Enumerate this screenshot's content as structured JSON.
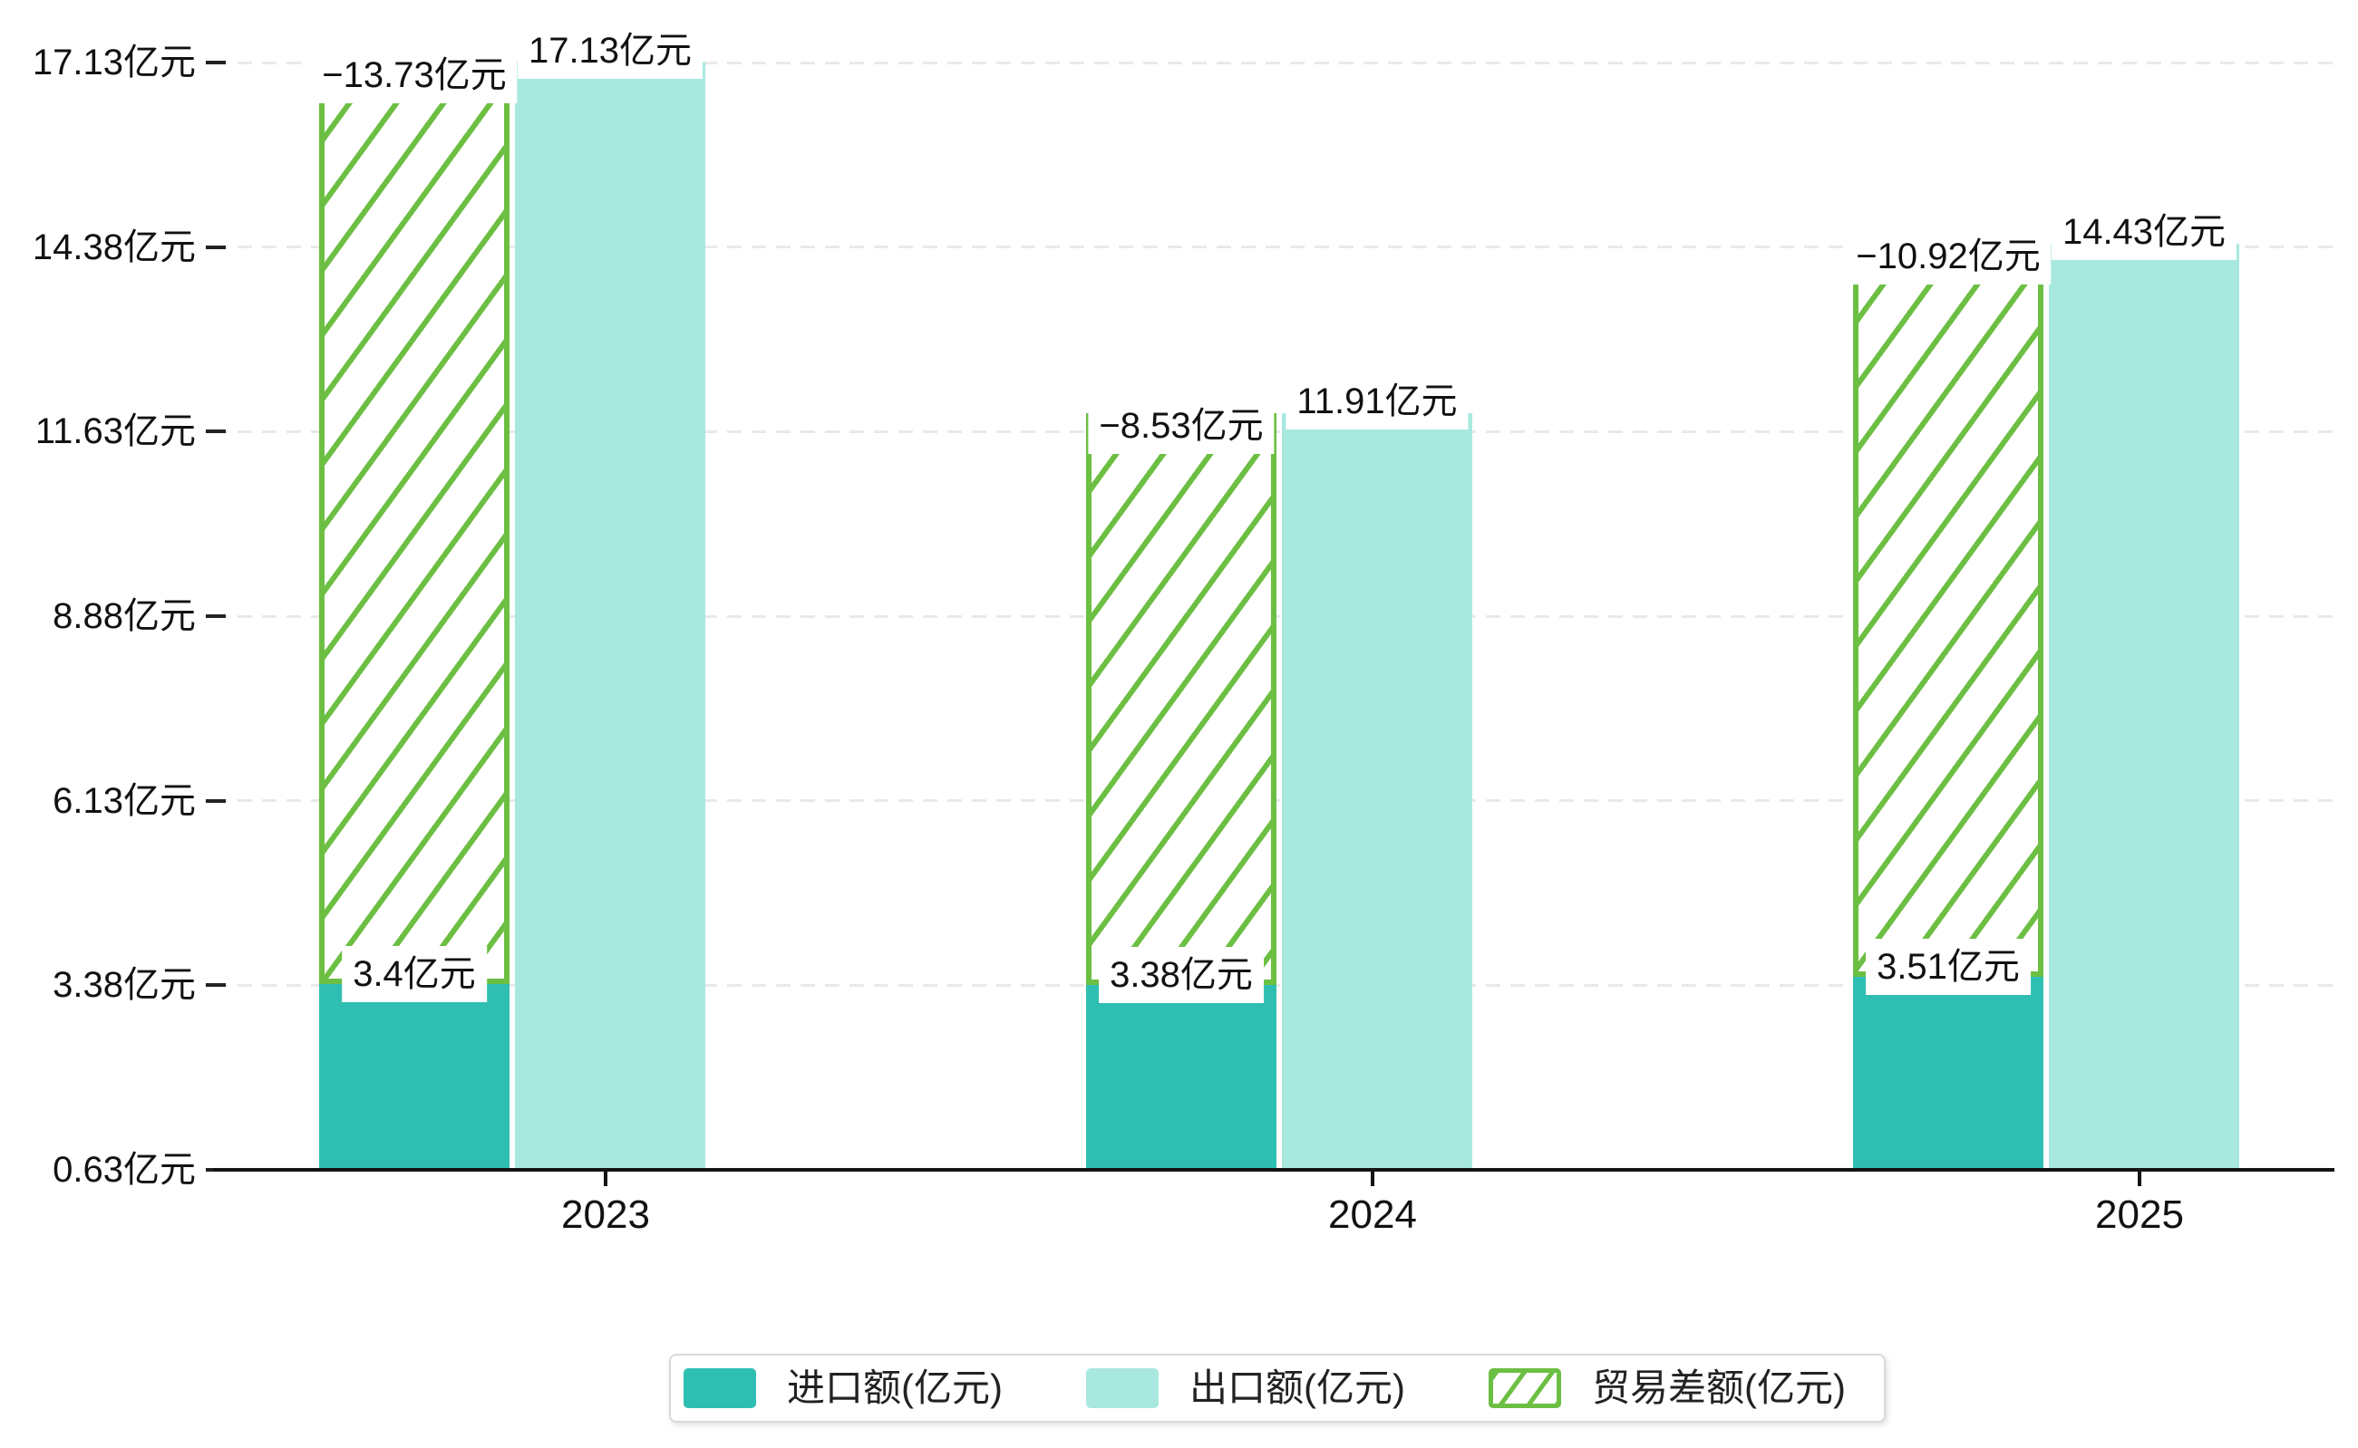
{
  "chart_data": {
    "type": "bar",
    "title": "",
    "categories": [
      "2023",
      "2024",
      "2025"
    ],
    "series": [
      {
        "name": "进口额(亿元)",
        "values": [
          3.4,
          3.38,
          3.51
        ],
        "labels": [
          "3.4亿元",
          "3.38亿元",
          "3.51亿元"
        ],
        "color": "#2FBEB2",
        "style": "solid"
      },
      {
        "name": "出口额(亿元)",
        "values": [
          17.13,
          11.91,
          14.43
        ],
        "labels": [
          "17.13亿元",
          "11.91亿元",
          "14.43亿元"
        ],
        "color": "#A9E8DF",
        "style": "solid"
      },
      {
        "name": "贸易差额(亿元)",
        "values": [
          -13.73,
          -8.53,
          -10.92
        ],
        "labels": [
          "−13.73亿元",
          "−8.53亿元",
          "−10.92亿元"
        ],
        "color": "#6CBF43",
        "style": "hatched"
      }
    ],
    "y_axis": {
      "min": 0.63,
      "max": 17.13,
      "ticks": [
        {
          "value": 0.63,
          "label": "0.63亿元"
        },
        {
          "value": 3.38,
          "label": "3.38亿元"
        },
        {
          "value": 6.13,
          "label": "6.13亿元"
        },
        {
          "value": 8.88,
          "label": "8.88亿元"
        },
        {
          "value": 11.63,
          "label": "11.63亿元"
        },
        {
          "value": 14.38,
          "label": "14.38亿元"
        },
        {
          "value": 17.13,
          "label": "17.13亿元"
        }
      ]
    },
    "grid": true,
    "legend_position": "bottom"
  },
  "legend": {
    "items": [
      {
        "label": "进口额(亿元)",
        "swatch": "solid-teal",
        "color": "#2FBEB2"
      },
      {
        "label": "出口额(亿元)",
        "swatch": "solid-light-teal",
        "color": "#A9E8DF"
      },
      {
        "label": "贸易差额(亿元)",
        "swatch": "hatched-green",
        "color": "#6CBF43"
      }
    ]
  },
  "colors": {
    "import_bar": "#2FBEB2",
    "export_bar": "#A9E8DF",
    "balance_hatch": "#6CBF43",
    "gridline": "#E9E9E9",
    "axis": "#141414",
    "legend_border": "#D9D9D9"
  }
}
